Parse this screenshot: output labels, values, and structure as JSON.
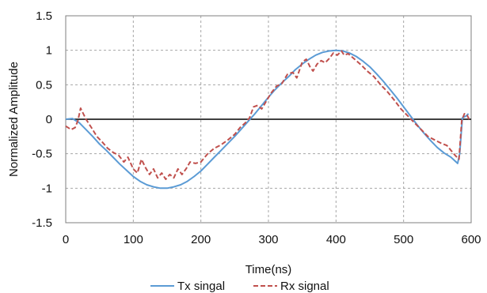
{
  "chart_data": {
    "type": "line",
    "title": "",
    "xlabel": "Time(ns)",
    "ylabel": "Normalized Amplitude",
    "xlim": [
      0,
      600
    ],
    "ylim": [
      -1.5,
      1.5
    ],
    "x_ticks": [
      0,
      100,
      200,
      300,
      400,
      500,
      600
    ],
    "y_ticks": [
      1.5,
      1,
      0.5,
      0,
      -0.5,
      -1,
      -1.5
    ],
    "y_tick_labels": [
      "1.5",
      "1",
      "0.5",
      "0",
      "-0.5",
      "-1",
      "-1.5"
    ],
    "grid": true,
    "legend_position": "bottom",
    "series": [
      {
        "name": "Tx singal",
        "color": "#5b9bd5",
        "dash": "solid",
        "points": [
          [
            0,
            0.0
          ],
          [
            10,
            0.01
          ],
          [
            20,
            -0.05
          ],
          [
            30,
            -0.15
          ],
          [
            40,
            -0.25
          ],
          [
            50,
            -0.36
          ],
          [
            60,
            -0.45
          ],
          [
            70,
            -0.55
          ],
          [
            80,
            -0.65
          ],
          [
            90,
            -0.74
          ],
          [
            100,
            -0.83
          ],
          [
            110,
            -0.9
          ],
          [
            120,
            -0.95
          ],
          [
            130,
            -0.98
          ],
          [
            140,
            -1.0
          ],
          [
            150,
            -1.0
          ],
          [
            160,
            -0.98
          ],
          [
            170,
            -0.95
          ],
          [
            180,
            -0.9
          ],
          [
            190,
            -0.83
          ],
          [
            200,
            -0.75
          ],
          [
            210,
            -0.65
          ],
          [
            220,
            -0.55
          ],
          [
            230,
            -0.45
          ],
          [
            240,
            -0.35
          ],
          [
            250,
            -0.25
          ],
          [
            260,
            -0.14
          ],
          [
            270,
            -0.03
          ],
          [
            280,
            0.08
          ],
          [
            290,
            0.2
          ],
          [
            300,
            0.32
          ],
          [
            310,
            0.43
          ],
          [
            320,
            0.53
          ],
          [
            330,
            0.62
          ],
          [
            340,
            0.72
          ],
          [
            350,
            0.8
          ],
          [
            360,
            0.87
          ],
          [
            370,
            0.93
          ],
          [
            380,
            0.97
          ],
          [
            390,
            0.99
          ],
          [
            400,
            1.0
          ],
          [
            410,
            0.99
          ],
          [
            420,
            0.96
          ],
          [
            430,
            0.91
          ],
          [
            440,
            0.84
          ],
          [
            450,
            0.76
          ],
          [
            460,
            0.66
          ],
          [
            470,
            0.55
          ],
          [
            480,
            0.43
          ],
          [
            490,
            0.31
          ],
          [
            500,
            0.18
          ],
          [
            510,
            0.05
          ],
          [
            520,
            -0.08
          ],
          [
            530,
            -0.2
          ],
          [
            540,
            -0.31
          ],
          [
            550,
            -0.41
          ],
          [
            560,
            -0.49
          ],
          [
            570,
            -0.55
          ],
          [
            580,
            -0.64
          ],
          [
            583,
            -0.5
          ],
          [
            587,
            0.02
          ],
          [
            593,
            0.05
          ],
          [
            596,
            0.08
          ]
        ]
      },
      {
        "name": "Rx signal",
        "color": "#c0504d",
        "dash": "dashed",
        "points": [
          [
            0,
            -0.1
          ],
          [
            8,
            -0.15
          ],
          [
            14,
            -0.12
          ],
          [
            18,
            -0.02
          ],
          [
            22,
            0.16
          ],
          [
            26,
            0.08
          ],
          [
            30,
            0.0
          ],
          [
            38,
            -0.12
          ],
          [
            46,
            -0.25
          ],
          [
            54,
            -0.33
          ],
          [
            62,
            -0.42
          ],
          [
            70,
            -0.48
          ],
          [
            78,
            -0.52
          ],
          [
            86,
            -0.62
          ],
          [
            92,
            -0.55
          ],
          [
            100,
            -0.72
          ],
          [
            106,
            -0.78
          ],
          [
            112,
            -0.58
          ],
          [
            118,
            -0.7
          ],
          [
            124,
            -0.8
          ],
          [
            130,
            -0.72
          ],
          [
            136,
            -0.85
          ],
          [
            142,
            -0.78
          ],
          [
            148,
            -0.87
          ],
          [
            154,
            -0.8
          ],
          [
            160,
            -0.85
          ],
          [
            166,
            -0.72
          ],
          [
            172,
            -0.8
          ],
          [
            178,
            -0.72
          ],
          [
            184,
            -0.62
          ],
          [
            192,
            -0.64
          ],
          [
            200,
            -0.62
          ],
          [
            210,
            -0.5
          ],
          [
            220,
            -0.42
          ],
          [
            230,
            -0.37
          ],
          [
            240,
            -0.3
          ],
          [
            250,
            -0.22
          ],
          [
            258,
            -0.12
          ],
          [
            266,
            -0.05
          ],
          [
            272,
            0.02
          ],
          [
            278,
            0.18
          ],
          [
            284,
            0.2
          ],
          [
            290,
            0.15
          ],
          [
            296,
            0.25
          ],
          [
            304,
            0.38
          ],
          [
            312,
            0.48
          ],
          [
            320,
            0.52
          ],
          [
            328,
            0.65
          ],
          [
            336,
            0.68
          ],
          [
            342,
            0.6
          ],
          [
            350,
            0.83
          ],
          [
            356,
            0.87
          ],
          [
            362,
            0.75
          ],
          [
            366,
            0.7
          ],
          [
            372,
            0.8
          ],
          [
            378,
            0.85
          ],
          [
            384,
            0.82
          ],
          [
            390,
            0.88
          ],
          [
            396,
            0.96
          ],
          [
            402,
            0.93
          ],
          [
            408,
            0.99
          ],
          [
            412,
            0.93
          ],
          [
            418,
            0.95
          ],
          [
            424,
            0.9
          ],
          [
            430,
            0.85
          ],
          [
            438,
            0.78
          ],
          [
            446,
            0.7
          ],
          [
            456,
            0.62
          ],
          [
            466,
            0.5
          ],
          [
            476,
            0.4
          ],
          [
            486,
            0.28
          ],
          [
            496,
            0.15
          ],
          [
            506,
            0.05
          ],
          [
            516,
            -0.05
          ],
          [
            526,
            -0.15
          ],
          [
            536,
            -0.25
          ],
          [
            546,
            -0.3
          ],
          [
            556,
            -0.35
          ],
          [
            564,
            -0.38
          ],
          [
            570,
            -0.45
          ],
          [
            576,
            -0.52
          ],
          [
            582,
            -0.58
          ],
          [
            586,
            -0.02
          ],
          [
            590,
            0.08
          ],
          [
            594,
            0.06
          ],
          [
            597,
            0.0
          ]
        ]
      }
    ]
  }
}
